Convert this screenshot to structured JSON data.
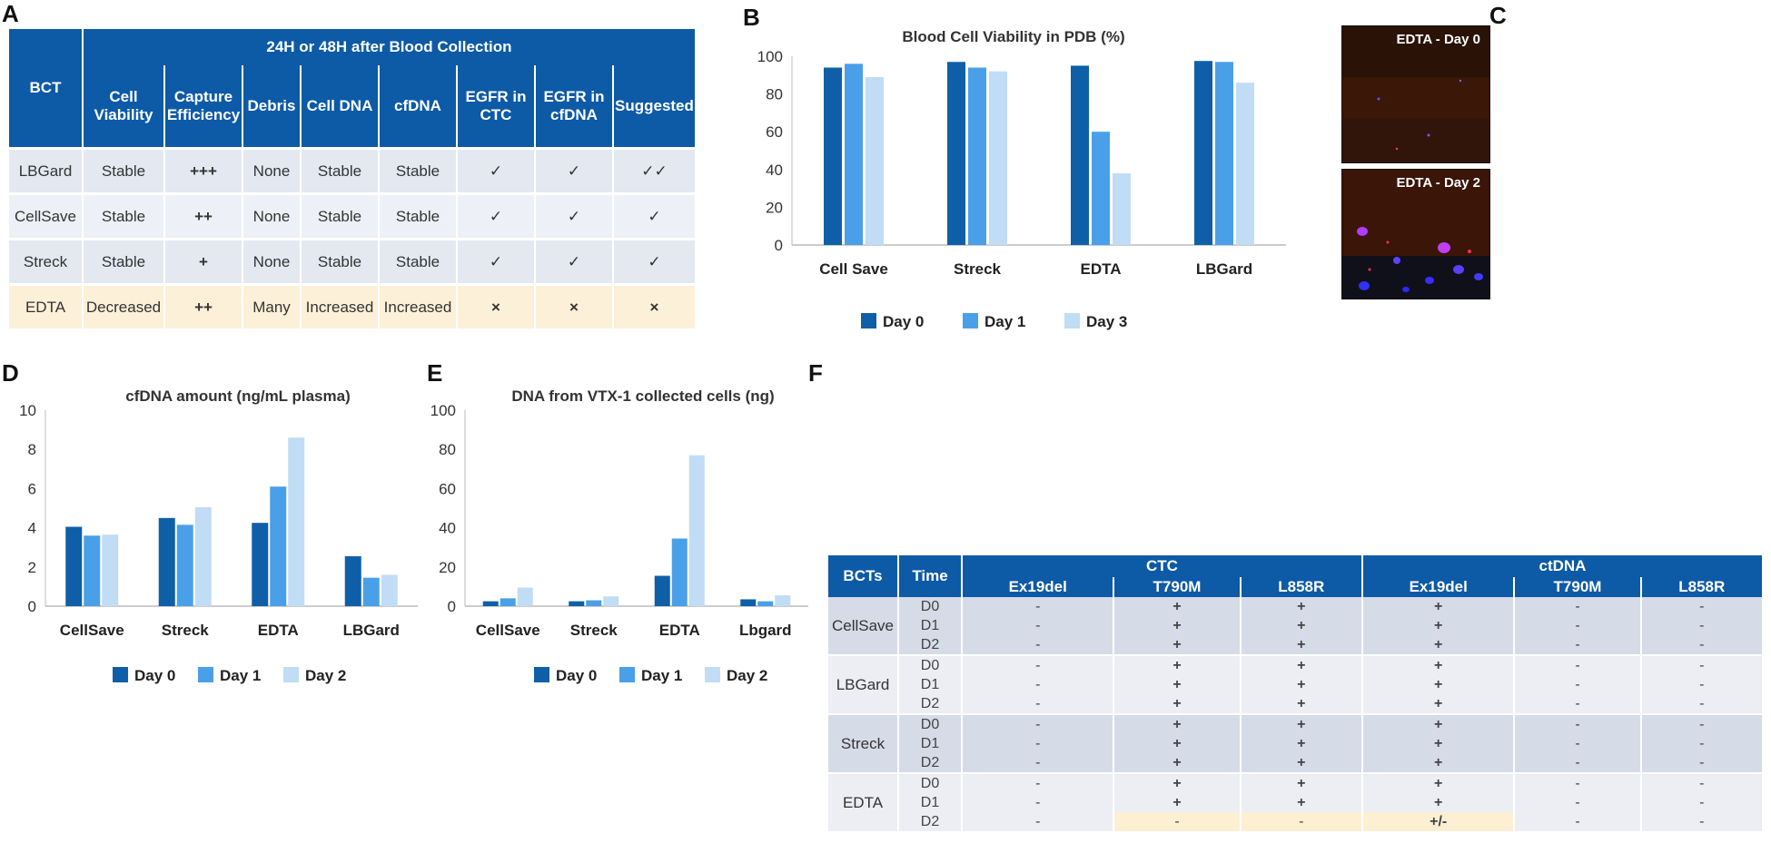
{
  "panels": {
    "a": "A",
    "b": "B",
    "c": "C",
    "d": "D",
    "e": "E",
    "f": "F"
  },
  "tableA": {
    "corner": "BCT",
    "group_header": "24H or 48H after Blood Collection",
    "columns": [
      "Cell Viability",
      "Capture Efficiency",
      "Debris",
      "Cell DNA",
      "cfDNA",
      "EGFR in CTC",
      "EGFR in cfDNA",
      "Suggested"
    ],
    "rows": [
      {
        "bct": "LBGard",
        "viability": "Stable",
        "capture": "+++",
        "debris": "None",
        "cell_dna": "Stable",
        "cfdna": "Stable",
        "egfr_ctc": "✓",
        "egfr_cfdna": "✓",
        "suggested": "✓✓"
      },
      {
        "bct": "CellSave",
        "viability": "Stable",
        "capture": "++",
        "debris": "None",
        "cell_dna": "Stable",
        "cfdna": "Stable",
        "egfr_ctc": "✓",
        "egfr_cfdna": "✓",
        "suggested": "✓"
      },
      {
        "bct": "Streck",
        "viability": "Stable",
        "capture": "+",
        "debris": "None",
        "cell_dna": "Stable",
        "cfdna": "Stable",
        "egfr_ctc": "✓",
        "egfr_cfdna": "✓",
        "suggested": "✓"
      },
      {
        "bct": "EDTA",
        "viability": "Decreased",
        "capture": "++",
        "debris": "Many",
        "cell_dna": "Increased",
        "cfdna": "Increased",
        "egfr_ctc": "×",
        "egfr_cfdna": "×",
        "suggested": "×"
      }
    ]
  },
  "images": {
    "top_label": "EDTA - Day 0",
    "bottom_label": "EDTA - Day 2"
  },
  "tableF": {
    "headers": {
      "bcts": "BCTs",
      "time": "Time",
      "ctc": "CTC",
      "ctdna": "ctDNA"
    },
    "mutations": [
      "Ex19del",
      "T790M",
      "L858R",
      "Ex19del",
      "T790M",
      "L858R"
    ],
    "groups": [
      {
        "bct": "CellSave",
        "rows": [
          {
            "time": "D0",
            "vals": [
              "-",
              "+",
              "+",
              "+",
              "-",
              "-"
            ]
          },
          {
            "time": "D1",
            "vals": [
              "-",
              "+",
              "+",
              "+",
              "-",
              "-"
            ]
          },
          {
            "time": "D2",
            "vals": [
              "-",
              "+",
              "+",
              "+",
              "-",
              "-"
            ]
          }
        ]
      },
      {
        "bct": "LBGard",
        "rows": [
          {
            "time": "D0",
            "vals": [
              "-",
              "+",
              "+",
              "+",
              "-",
              "-"
            ]
          },
          {
            "time": "D1",
            "vals": [
              "-",
              "+",
              "+",
              "+",
              "-",
              "-"
            ]
          },
          {
            "time": "D2",
            "vals": [
              "-",
              "+",
              "+",
              "+",
              "-",
              "-"
            ]
          }
        ]
      },
      {
        "bct": "Streck",
        "rows": [
          {
            "time": "D0",
            "vals": [
              "-",
              "+",
              "+",
              "+",
              "-",
              "-"
            ]
          },
          {
            "time": "D1",
            "vals": [
              "-",
              "+",
              "+",
              "+",
              "-",
              "-"
            ]
          },
          {
            "time": "D2",
            "vals": [
              "-",
              "+",
              "+",
              "+",
              "-",
              "-"
            ]
          }
        ]
      },
      {
        "bct": "EDTA",
        "rows": [
          {
            "time": "D0",
            "vals": [
              "-",
              "+",
              "+",
              "+",
              "-",
              "-"
            ]
          },
          {
            "time": "D1",
            "vals": [
              "-",
              "+",
              "+",
              "+",
              "-",
              "-"
            ]
          },
          {
            "time": "D2",
            "vals": [
              "-",
              "-",
              "-",
              "+/-",
              "-",
              "-"
            ]
          }
        ]
      }
    ]
  },
  "colors": {
    "day0": "#0f5fa8",
    "day1": "#4aa0e8",
    "day2": "#c1dcf5",
    "header": "#0d5aa7"
  },
  "chart_data": [
    {
      "id": "B",
      "type": "bar",
      "title": "Blood Cell Viability in PDB (%)",
      "categories": [
        "Cell Save",
        "Streck",
        "EDTA",
        "LBGard"
      ],
      "series": [
        {
          "name": "Day 0",
          "values": [
            94,
            97,
            95,
            97.5
          ]
        },
        {
          "name": "Day 1",
          "values": [
            96,
            94,
            60,
            97
          ]
        },
        {
          "name": "Day 3",
          "values": [
            89,
            92,
            38,
            86
          ]
        }
      ],
      "ylim": [
        0,
        100
      ],
      "yticks": [
        0,
        20,
        40,
        60,
        80,
        100
      ],
      "xlabel": "",
      "ylabel": "",
      "legend": "bottom"
    },
    {
      "id": "D",
      "type": "bar",
      "title": "cfDNA amount (ng/mL plasma)",
      "categories": [
        "CellSave",
        "Streck",
        "EDTA",
        "LBGard"
      ],
      "series": [
        {
          "name": "Day 0",
          "values": [
            4.05,
            4.5,
            4.25,
            2.55
          ]
        },
        {
          "name": "Day 1",
          "values": [
            3.6,
            4.15,
            6.1,
            1.45
          ]
        },
        {
          "name": "Day 2",
          "values": [
            3.65,
            5.05,
            8.6,
            1.6
          ]
        }
      ],
      "ylim": [
        0,
        10
      ],
      "yticks": [
        0,
        2,
        4,
        6,
        8,
        10
      ],
      "xlabel": "",
      "ylabel": "",
      "legend": "bottom"
    },
    {
      "id": "E",
      "type": "bar",
      "title": "DNA from VTX-1 collected cells (ng)",
      "categories": [
        "CellSave",
        "Streck",
        "EDTA",
        "Lbgard"
      ],
      "series": [
        {
          "name": "Day 0",
          "values": [
            2.5,
            2.5,
            15.5,
            3.5
          ]
        },
        {
          "name": "Day 1",
          "values": [
            4,
            3,
            34.5,
            2.5
          ]
        },
        {
          "name": "Day 2",
          "values": [
            9.5,
            5,
            77,
            5.5
          ]
        }
      ],
      "ylim": [
        0,
        100
      ],
      "yticks": [
        0,
        20,
        40,
        60,
        80,
        100
      ],
      "xlabel": "",
      "ylabel": "",
      "legend": "bottom"
    }
  ]
}
